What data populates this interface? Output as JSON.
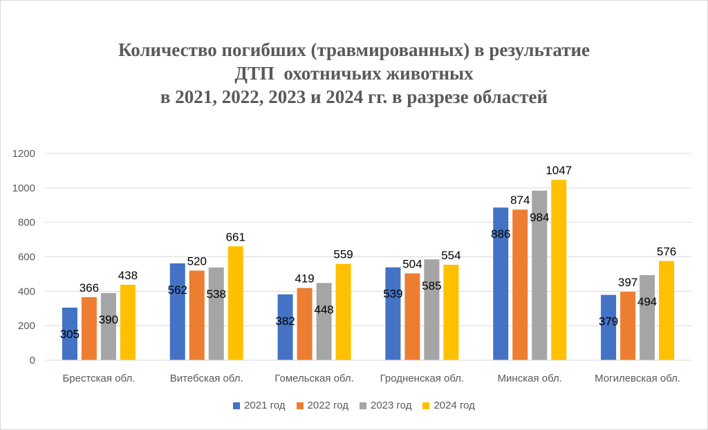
{
  "chart_data": {
    "type": "bar",
    "title_lines": [
      "Количество погибших (травмированных) в результатие",
      "ДТП  охотничьих животных",
      "в 2021, 2022, 2023 и 2024 гг. в разрезе областей"
    ],
    "categories": [
      "Брестская обл.",
      "Витебская обл.",
      "Гомельская обл.",
      "Гродненская обл.",
      "Минская обл.",
      "Могилевская обл."
    ],
    "series": [
      {
        "name": "2021 год",
        "color": "#4472c4",
        "values": [
          305,
          562,
          382,
          539,
          886,
          379
        ]
      },
      {
        "name": "2022 год",
        "color": "#ed7d31",
        "values": [
          366,
          520,
          419,
          504,
          874,
          397
        ]
      },
      {
        "name": "2023 год",
        "color": "#a5a5a5",
        "values": [
          390,
          538,
          448,
          585,
          984,
          494
        ]
      },
      {
        "name": "2024 год",
        "color": "#ffc000",
        "values": [
          438,
          661,
          559,
          554,
          1047,
          576
        ]
      }
    ],
    "ylim": [
      0,
      1200
    ],
    "yticks": [
      "0",
      "200",
      "400",
      "600",
      "800",
      "1000",
      "1200"
    ],
    "grid": true,
    "legend_position": "bottom",
    "xlabel": "",
    "ylabel": ""
  }
}
